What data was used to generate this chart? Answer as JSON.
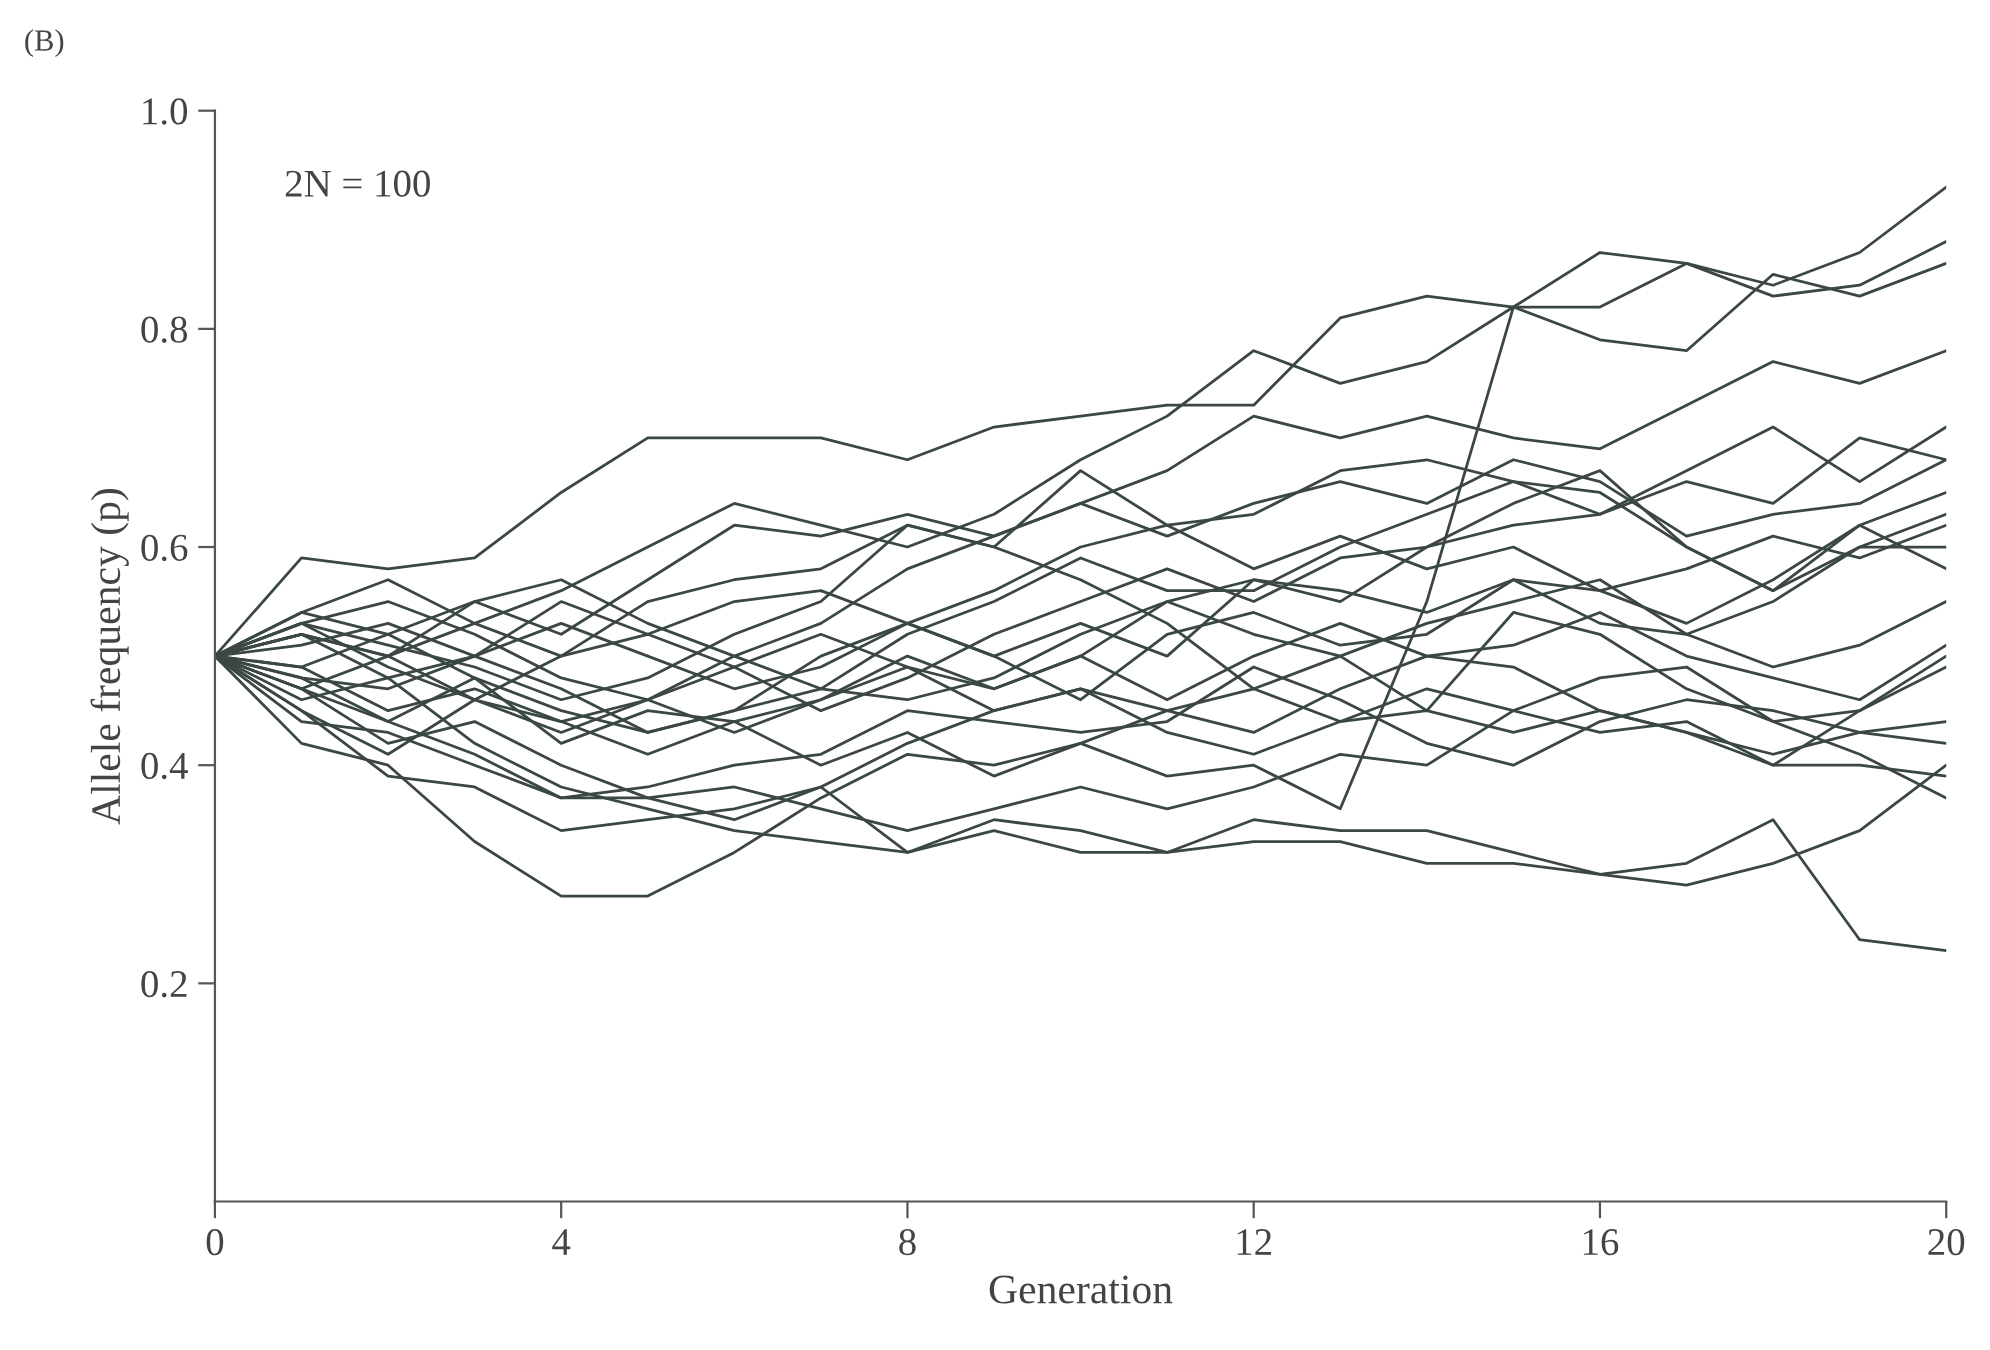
{
  "chart_data": {
    "type": "line",
    "xlabel": "Generation",
    "ylabel": "Allele frequency (p)",
    "annotations": [
      "(B)",
      "2N = 100"
    ],
    "x": [
      0,
      1,
      2,
      3,
      4,
      5,
      6,
      7,
      8,
      9,
      10,
      11,
      12,
      13,
      14,
      15,
      16,
      17,
      18,
      19,
      20
    ],
    "xlim": [
      0,
      20
    ],
    "xticks": [
      0,
      4,
      8,
      12,
      16,
      20
    ],
    "ylim": [
      0,
      1
    ],
    "yticks": [
      0.2,
      0.4,
      0.6,
      0.8,
      {
        "value": 1,
        "label": "1.0"
      }
    ],
    "grid": false,
    "marker": "none",
    "line_style": "solid",
    "series": [
      {
        "color": "#3a4744",
        "values": [
          0.5,
          0.59,
          0.58,
          0.59,
          0.65,
          0.7,
          0.7,
          0.7,
          0.68,
          0.71,
          0.72,
          0.73,
          0.73,
          0.81,
          0.83,
          0.82,
          0.82,
          0.86,
          0.83,
          0.84,
          0.88
        ]
      },
      {
        "color": "#3a4744",
        "values": [
          0.5,
          0.54,
          0.57,
          0.53,
          0.56,
          0.6,
          0.64,
          0.62,
          0.6,
          0.63,
          0.68,
          0.72,
          0.78,
          0.75,
          0.77,
          0.82,
          0.87,
          0.86,
          0.84,
          0.87,
          0.93
        ]
      },
      {
        "color": "#3a4744",
        "values": [
          0.5,
          0.47,
          0.44,
          0.48,
          0.42,
          0.45,
          0.44,
          0.4,
          0.43,
          0.39,
          0.42,
          0.39,
          0.4,
          0.36,
          0.55,
          0.82,
          0.79,
          0.78,
          0.85,
          0.83,
          0.86
        ]
      },
      {
        "color": "#3a4744",
        "values": [
          0.5,
          0.52,
          0.5,
          0.55,
          0.52,
          0.57,
          0.62,
          0.61,
          0.63,
          0.61,
          0.64,
          0.67,
          0.72,
          0.7,
          0.72,
          0.7,
          0.69,
          0.73,
          0.77,
          0.75,
          0.78
        ]
      },
      {
        "color": "#3a4744",
        "values": [
          0.5,
          0.53,
          0.49,
          0.46,
          0.5,
          0.55,
          0.57,
          0.58,
          0.62,
          0.6,
          0.67,
          0.62,
          0.63,
          0.67,
          0.68,
          0.66,
          0.63,
          0.67,
          0.71,
          0.66,
          0.71
        ]
      },
      {
        "color": "#3a4744",
        "values": [
          0.5,
          0.45,
          0.41,
          0.46,
          0.44,
          0.46,
          0.49,
          0.45,
          0.48,
          0.52,
          0.55,
          0.58,
          0.55,
          0.59,
          0.6,
          0.62,
          0.63,
          0.66,
          0.64,
          0.7,
          0.68
        ]
      },
      {
        "color": "#3a4744",
        "values": [
          0.5,
          0.53,
          0.55,
          0.52,
          0.48,
          0.46,
          0.5,
          0.53,
          0.58,
          0.61,
          0.64,
          0.61,
          0.64,
          0.66,
          0.64,
          0.68,
          0.66,
          0.61,
          0.63,
          0.64,
          0.68
        ]
      },
      {
        "color": "#3a4744",
        "values": [
          0.5,
          0.49,
          0.52,
          0.55,
          0.57,
          0.53,
          0.5,
          0.47,
          0.52,
          0.55,
          0.59,
          0.56,
          0.56,
          0.6,
          0.63,
          0.66,
          0.65,
          0.6,
          0.56,
          0.62,
          0.65
        ]
      },
      {
        "color": "#3a4744",
        "values": [
          0.5,
          0.48,
          0.47,
          0.5,
          0.53,
          0.5,
          0.47,
          0.49,
          0.53,
          0.5,
          0.53,
          0.5,
          0.57,
          0.55,
          0.6,
          0.64,
          0.67,
          0.6,
          0.56,
          0.6,
          0.63
        ]
      },
      {
        "color": "#3a4744",
        "values": [
          0.5,
          0.52,
          0.5,
          0.53,
          0.5,
          0.52,
          0.55,
          0.56,
          0.53,
          0.5,
          0.46,
          0.52,
          0.54,
          0.51,
          0.52,
          0.57,
          0.56,
          0.58,
          0.61,
          0.59,
          0.62
        ]
      },
      {
        "color": "#3a4744",
        "values": [
          0.5,
          0.53,
          0.51,
          0.49,
          0.46,
          0.48,
          0.52,
          0.55,
          0.62,
          0.6,
          0.57,
          0.53,
          0.47,
          0.5,
          0.53,
          0.55,
          0.57,
          0.52,
          0.55,
          0.6,
          0.6
        ]
      },
      {
        "color": "#3a4744",
        "values": [
          0.5,
          0.54,
          0.52,
          0.48,
          0.45,
          0.43,
          0.45,
          0.5,
          0.53,
          0.56,
          0.6,
          0.62,
          0.58,
          0.61,
          0.58,
          0.6,
          0.56,
          0.53,
          0.57,
          0.62,
          0.58
        ]
      },
      {
        "color": "#3a4744",
        "values": [
          0.5,
          0.51,
          0.53,
          0.5,
          0.55,
          0.52,
          0.49,
          0.52,
          0.49,
          0.47,
          0.5,
          0.55,
          0.57,
          0.56,
          0.54,
          0.57,
          0.53,
          0.52,
          0.49,
          0.51,
          0.55
        ]
      },
      {
        "color": "#3a4744",
        "values": [
          0.5,
          0.47,
          0.5,
          0.46,
          0.43,
          0.46,
          0.43,
          0.46,
          0.5,
          0.47,
          0.5,
          0.46,
          0.5,
          0.53,
          0.5,
          0.51,
          0.54,
          0.5,
          0.48,
          0.46,
          0.51
        ]
      },
      {
        "color": "#3a4744",
        "values": [
          0.5,
          0.46,
          0.48,
          0.5,
          0.47,
          0.43,
          0.45,
          0.47,
          0.46,
          0.48,
          0.52,
          0.55,
          0.52,
          0.5,
          0.45,
          0.54,
          0.52,
          0.47,
          0.44,
          0.45,
          0.49
        ]
      },
      {
        "color": "#3a4744",
        "values": [
          0.5,
          0.49,
          0.45,
          0.47,
          0.44,
          0.41,
          0.44,
          0.46,
          0.49,
          0.45,
          0.47,
          0.45,
          0.43,
          0.47,
          0.5,
          0.49,
          0.45,
          0.43,
          0.41,
          0.43,
          0.44
        ]
      },
      {
        "color": "#3a4744",
        "values": [
          0.5,
          0.48,
          0.44,
          0.41,
          0.37,
          0.38,
          0.4,
          0.41,
          0.45,
          0.44,
          0.43,
          0.44,
          0.49,
          0.46,
          0.42,
          0.4,
          0.44,
          0.46,
          0.45,
          0.43,
          0.42
        ]
      },
      {
        "color": "#3a4744",
        "values": [
          0.5,
          0.44,
          0.43,
          0.4,
          0.37,
          0.37,
          0.35,
          0.38,
          0.42,
          0.45,
          0.47,
          0.43,
          0.41,
          0.44,
          0.45,
          0.43,
          0.45,
          0.43,
          0.4,
          0.4,
          0.39
        ]
      },
      {
        "color": "#3a4744",
        "values": [
          0.5,
          0.47,
          0.42,
          0.44,
          0.4,
          0.37,
          0.38,
          0.36,
          0.34,
          0.36,
          0.38,
          0.36,
          0.38,
          0.41,
          0.4,
          0.45,
          0.48,
          0.49,
          0.44,
          0.41,
          0.37
        ]
      },
      {
        "color": "#3a4744",
        "values": [
          0.5,
          0.42,
          0.4,
          0.33,
          0.28,
          0.28,
          0.32,
          0.37,
          0.41,
          0.4,
          0.42,
          0.45,
          0.47,
          0.44,
          0.47,
          0.45,
          0.43,
          0.44,
          0.4,
          0.45,
          0.5
        ]
      },
      {
        "color": "#3a4744",
        "values": [
          0.5,
          0.45,
          0.39,
          0.38,
          0.34,
          0.35,
          0.36,
          0.38,
          0.32,
          0.34,
          0.32,
          0.32,
          0.35,
          0.34,
          0.34,
          0.32,
          0.3,
          0.31,
          0.35,
          0.24,
          0.23
        ]
      },
      {
        "color": "#3a4744",
        "values": [
          0.5,
          0.52,
          0.48,
          0.42,
          0.38,
          0.36,
          0.34,
          0.33,
          0.32,
          0.35,
          0.34,
          0.32,
          0.33,
          0.33,
          0.31,
          0.31,
          0.3,
          0.29,
          0.31,
          0.34,
          0.4
        ]
      }
    ]
  }
}
